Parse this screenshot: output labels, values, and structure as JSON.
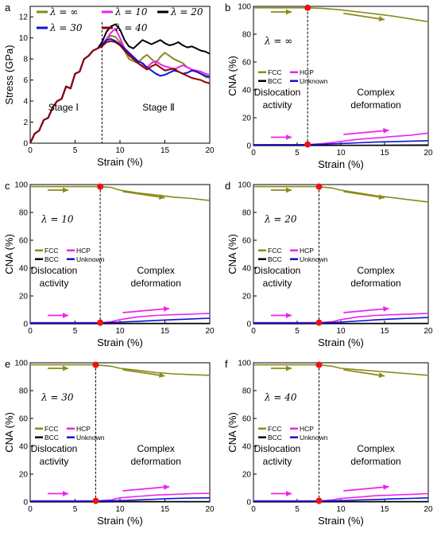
{
  "colors": {
    "olive": "#8a8a1a",
    "magenta": "#ee22ee",
    "black": "#000000",
    "blue": "#1010d8",
    "darkred": "#8b0000",
    "marker": "#ee1111"
  },
  "chart_data": [
    {
      "panel": "a",
      "type": "line",
      "xlabel": "Strain (%)",
      "ylabel": "Stress (GPa)",
      "xlim": [
        0,
        20
      ],
      "ylim": [
        0,
        13
      ],
      "xticks": [
        0,
        5,
        10,
        15,
        20
      ],
      "yticks": [
        0,
        2,
        4,
        6,
        8,
        10,
        12
      ],
      "stage_line_x": 8,
      "stage_labels": [
        "Stage Ⅰ",
        "Stage Ⅱ"
      ],
      "legend_position": "top",
      "series": [
        {
          "name": "λ = ∞",
          "color": "olive",
          "x": [
            0,
            0.5,
            1,
            1.5,
            2,
            2.5,
            3,
            3.5,
            4,
            4.5,
            5,
            5.5,
            6,
            6.5,
            7,
            7.5,
            8,
            8.5,
            9,
            9.5,
            10,
            10.5,
            11,
            11.5,
            12,
            12.5,
            13,
            13.5,
            14,
            14.5,
            15,
            15.5,
            16,
            16.5,
            17,
            17.5,
            18,
            18.5,
            19,
            19.5,
            20
          ],
          "y": [
            0,
            0.9,
            1.2,
            2.2,
            2.4,
            3.4,
            4.0,
            4.2,
            5.4,
            5.2,
            6.6,
            6.8,
            8.0,
            8.3,
            8.8,
            9.0,
            9.3,
            9.9,
            10.2,
            10.1,
            9.6,
            8.8,
            8.0,
            7.8,
            7.6,
            8.1,
            8.4,
            8.0,
            7.6,
            8.2,
            8.6,
            8.3,
            8.0,
            7.8,
            7.6,
            7.2,
            7.0,
            6.8,
            6.6,
            6.3,
            6.2
          ]
        },
        {
          "name": "λ = 10",
          "color": "magenta",
          "x": [
            0,
            0.5,
            1,
            1.5,
            2,
            2.5,
            3,
            3.5,
            4,
            4.5,
            5,
            5.5,
            6,
            6.5,
            7,
            7.5,
            8,
            8.5,
            9,
            9.5,
            10,
            10.5,
            11,
            11.5,
            12,
            12.5,
            13,
            13.5,
            14,
            14.5,
            15,
            15.5,
            16,
            16.5,
            17,
            17.5,
            18,
            18.5,
            19,
            19.5,
            20
          ],
          "y": [
            0,
            0.9,
            1.2,
            2.2,
            2.4,
            3.4,
            4.0,
            4.2,
            5.4,
            5.2,
            6.6,
            6.8,
            8.0,
            8.3,
            8.8,
            9.0,
            9.4,
            9.9,
            10.5,
            10.9,
            10.0,
            9.0,
            8.3,
            8.0,
            7.6,
            7.4,
            7.2,
            7.6,
            7.8,
            7.5,
            7.3,
            7.2,
            7.0,
            7.2,
            7.4,
            7.2,
            7.0,
            6.9,
            6.8,
            6.6,
            6.5
          ]
        },
        {
          "name": "λ = 20",
          "color": "black",
          "x": [
            0,
            0.5,
            1,
            1.5,
            2,
            2.5,
            3,
            3.5,
            4,
            4.5,
            5,
            5.5,
            6,
            6.5,
            7,
            7.5,
            8,
            8.5,
            9,
            9.5,
            10,
            10.5,
            11,
            11.5,
            12,
            12.5,
            13,
            13.5,
            14,
            14.5,
            15,
            15.5,
            16,
            16.5,
            17,
            17.5,
            18,
            18.5,
            19,
            19.5,
            20
          ],
          "y": [
            0,
            0.9,
            1.2,
            2.2,
            2.4,
            3.4,
            4.0,
            4.2,
            5.4,
            5.2,
            6.6,
            6.8,
            8.0,
            8.3,
            8.8,
            9.0,
            9.6,
            10.6,
            11.1,
            11.3,
            10.8,
            9.8,
            9.2,
            9.0,
            9.4,
            9.8,
            9.6,
            9.4,
            9.6,
            9.8,
            9.5,
            9.3,
            9.4,
            9.6,
            9.3,
            9.1,
            9.2,
            9.0,
            8.8,
            8.7,
            8.5
          ]
        },
        {
          "name": "λ = 30",
          "color": "blue",
          "x": [
            0,
            0.5,
            1,
            1.5,
            2,
            2.5,
            3,
            3.5,
            4,
            4.5,
            5,
            5.5,
            6,
            6.5,
            7,
            7.5,
            8,
            8.5,
            9,
            9.5,
            10,
            10.5,
            11,
            11.5,
            12,
            12.5,
            13,
            13.5,
            14,
            14.5,
            15,
            15.5,
            16,
            16.5,
            17,
            17.5,
            18,
            18.5,
            19,
            19.5,
            20
          ],
          "y": [
            0,
            0.9,
            1.2,
            2.2,
            2.4,
            3.4,
            4.0,
            4.2,
            5.4,
            5.2,
            6.6,
            6.8,
            8.0,
            8.3,
            8.8,
            9.0,
            9.3,
            9.8,
            9.9,
            9.7,
            9.4,
            9.0,
            8.6,
            8.2,
            7.8,
            7.6,
            7.2,
            6.9,
            6.6,
            6.4,
            6.5,
            6.7,
            6.9,
            6.8,
            6.6,
            6.7,
            6.9,
            6.8,
            6.6,
            6.4,
            6.3
          ]
        },
        {
          "name": "λ = 40",
          "color": "darkred",
          "x": [
            0,
            0.5,
            1,
            1.5,
            2,
            2.5,
            3,
            3.5,
            4,
            4.5,
            5,
            5.5,
            6,
            6.5,
            7,
            7.5,
            8,
            8.5,
            9,
            9.5,
            10,
            10.5,
            11,
            11.5,
            12,
            12.5,
            13,
            13.5,
            14,
            14.5,
            15,
            15.5,
            16,
            16.5,
            17,
            17.5,
            18,
            18.5,
            19,
            19.5,
            20
          ],
          "y": [
            0,
            0.9,
            1.2,
            2.2,
            2.4,
            3.4,
            4.0,
            4.2,
            5.4,
            5.2,
            6.6,
            6.8,
            8.0,
            8.3,
            8.8,
            9.0,
            9.2,
            9.6,
            9.7,
            9.6,
            9.3,
            8.8,
            8.4,
            8.0,
            7.6,
            7.3,
            7.0,
            7.3,
            7.5,
            7.2,
            6.9,
            7.0,
            7.1,
            6.8,
            6.6,
            6.4,
            6.2,
            6.1,
            6.0,
            5.8,
            5.7
          ]
        }
      ]
    },
    {
      "panel": "b",
      "type": "line",
      "lambda_label": "λ = ∞",
      "transition_x": 6.2,
      "xlabel": "Strain (%)",
      "ylabel": "CNA (%)",
      "xlim": [
        0,
        20
      ],
      "ylim": [
        0,
        100
      ],
      "xticks": [
        0,
        5,
        10,
        15,
        20
      ],
      "yticks": [
        0,
        20,
        40,
        60,
        80,
        100
      ],
      "legend": [
        "FCC",
        "HCP",
        "BCC",
        "Unknown"
      ],
      "region_labels": [
        "Dislocation activity",
        "Complex deformation"
      ],
      "series": [
        {
          "name": "FCC",
          "color": "olive",
          "x": [
            0,
            6.2,
            8,
            10,
            12,
            14,
            16,
            18,
            20
          ],
          "y": [
            99,
            99,
            98.5,
            97.5,
            96,
            94.5,
            93,
            91,
            89
          ]
        },
        {
          "name": "HCP",
          "color": "magenta",
          "x": [
            0,
            6.2,
            8,
            10,
            12,
            14,
            16,
            18,
            20
          ],
          "y": [
            0.5,
            0.7,
            1.5,
            3,
            4.5,
            5.5,
            6.5,
            7.5,
            9
          ]
        },
        {
          "name": "BCC",
          "color": "black",
          "x": [
            0,
            6.2,
            10,
            15,
            20
          ],
          "y": [
            0.1,
            0.1,
            0.2,
            0.3,
            0.4
          ]
        },
        {
          "name": "Unknown",
          "color": "blue",
          "x": [
            0,
            6.2,
            8,
            10,
            12,
            14,
            16,
            18,
            20
          ],
          "y": [
            0.6,
            0.6,
            1,
            1.5,
            2,
            2.5,
            2.8,
            3.2,
            3.5
          ]
        }
      ]
    },
    {
      "panel": "c",
      "type": "line",
      "lambda_label": "λ = 10",
      "transition_x": 7.8,
      "xlabel": "Strain (%)",
      "ylabel": "CNA (%)",
      "xlim": [
        0,
        20
      ],
      "ylim": [
        0,
        100
      ],
      "xticks": [
        0,
        5,
        10,
        15,
        20
      ],
      "yticks": [
        0,
        20,
        40,
        60,
        80,
        100
      ],
      "legend": [
        "FCC",
        "HCP",
        "BCC",
        "Unknown"
      ],
      "region_labels": [
        "Dislocation activity",
        "Complex deformation"
      ],
      "series": [
        {
          "name": "FCC",
          "color": "olive",
          "x": [
            0,
            7.8,
            9,
            10,
            12,
            14,
            16,
            18,
            20
          ],
          "y": [
            98.5,
            98.5,
            98,
            96,
            94,
            92.5,
            91,
            90,
            88.5
          ]
        },
        {
          "name": "HCP",
          "color": "magenta",
          "x": [
            0,
            7.8,
            9,
            10,
            12,
            14,
            16,
            18,
            20
          ],
          "y": [
            0.8,
            0.8,
            1.5,
            3,
            5,
            6,
            6.5,
            7,
            7.5
          ]
        },
        {
          "name": "BCC",
          "color": "black",
          "x": [
            0,
            7.8,
            12,
            16,
            20
          ],
          "y": [
            0.1,
            0.1,
            0.2,
            0.2,
            0.3
          ]
        },
        {
          "name": "Unknown",
          "color": "blue",
          "x": [
            0,
            7.8,
            10,
            12,
            14,
            16,
            18,
            20
          ],
          "y": [
            0.6,
            0.6,
            1.2,
            1.8,
            2.4,
            3,
            3.5,
            4
          ]
        }
      ]
    },
    {
      "panel": "d",
      "type": "line",
      "lambda_label": "λ = 20",
      "transition_x": 7.5,
      "xlabel": "Strain (%)",
      "ylabel": "CNA (%)",
      "xlim": [
        0,
        20
      ],
      "ylim": [
        0,
        100
      ],
      "xticks": [
        0,
        5,
        10,
        15,
        20
      ],
      "yticks": [
        0,
        20,
        40,
        60,
        80,
        100
      ],
      "legend": [
        "FCC",
        "HCP",
        "BCC",
        "Unknown"
      ],
      "region_labels": [
        "Dislocation activity",
        "Complex deformation"
      ],
      "series": [
        {
          "name": "FCC",
          "color": "olive",
          "x": [
            0,
            7.5,
            9,
            10,
            12,
            14,
            16,
            18,
            20
          ],
          "y": [
            98.5,
            98.5,
            97.5,
            96,
            94,
            92,
            90.5,
            89,
            87.5
          ]
        },
        {
          "name": "HCP",
          "color": "magenta",
          "x": [
            0,
            7.5,
            9,
            10,
            12,
            14,
            16,
            18,
            20
          ],
          "y": [
            0.8,
            0.8,
            1.5,
            3,
            5,
            6,
            6.5,
            7,
            7.5
          ]
        },
        {
          "name": "BCC",
          "color": "black",
          "x": [
            0,
            7.5,
            12,
            16,
            20
          ],
          "y": [
            0.1,
            0.1,
            0.2,
            0.2,
            0.3
          ]
        },
        {
          "name": "Unknown",
          "color": "blue",
          "x": [
            0,
            7.5,
            10,
            12,
            14,
            16,
            18,
            20
          ],
          "y": [
            0.6,
            0.6,
            1.2,
            2,
            2.8,
            3.5,
            4,
            4.5
          ]
        }
      ]
    },
    {
      "panel": "e",
      "type": "line",
      "lambda_label": "λ = 30",
      "transition_x": 7.3,
      "xlabel": "Strain (%)",
      "ylabel": "CNA (%)",
      "xlim": [
        0,
        20
      ],
      "ylim": [
        0,
        100
      ],
      "xticks": [
        0,
        5,
        10,
        15,
        20
      ],
      "yticks": [
        0,
        20,
        40,
        60,
        80,
        100
      ],
      "legend": [
        "FCC",
        "HCP",
        "BCC",
        "Unknown"
      ],
      "region_labels": [
        "Dislocation activity",
        "Complex deformation"
      ],
      "series": [
        {
          "name": "FCC",
          "color": "olive",
          "x": [
            0,
            7.3,
            9,
            10,
            12,
            14,
            16,
            18,
            20
          ],
          "y": [
            98.5,
            98.5,
            97.5,
            96,
            94.5,
            93,
            92,
            91.5,
            91
          ]
        },
        {
          "name": "HCP",
          "color": "magenta",
          "x": [
            0,
            7.3,
            9,
            10,
            12,
            14,
            16,
            18,
            20
          ],
          "y": [
            0.8,
            0.8,
            1.5,
            3,
            4,
            5,
            5.5,
            6,
            6.2
          ]
        },
        {
          "name": "BCC",
          "color": "black",
          "x": [
            0,
            7.3,
            12,
            16,
            20
          ],
          "y": [
            0.1,
            0.1,
            0.2,
            0.2,
            0.3
          ]
        },
        {
          "name": "Unknown",
          "color": "blue",
          "x": [
            0,
            7.3,
            10,
            12,
            14,
            16,
            18,
            20
          ],
          "y": [
            0.6,
            0.6,
            1,
            1.5,
            2,
            2.5,
            2.8,
            3
          ]
        }
      ]
    },
    {
      "panel": "f",
      "type": "line",
      "lambda_label": "λ = 40",
      "transition_x": 7.5,
      "xlabel": "Strain (%)",
      "ylabel": "CNA (%)",
      "xlim": [
        0,
        20
      ],
      "ylim": [
        0,
        100
      ],
      "xticks": [
        0,
        5,
        10,
        15,
        20
      ],
      "yticks": [
        0,
        20,
        40,
        60,
        80,
        100
      ],
      "legend": [
        "FCC",
        "HCP",
        "BCC",
        "Unknown"
      ],
      "region_labels": [
        "Dislocation activity",
        "Complex deformation"
      ],
      "series": [
        {
          "name": "FCC",
          "color": "olive",
          "x": [
            0,
            7.5,
            9,
            10,
            12,
            14,
            16,
            18,
            20
          ],
          "y": [
            98.5,
            98.5,
            97.5,
            96,
            95,
            94,
            93,
            92,
            91
          ]
        },
        {
          "name": "HCP",
          "color": "magenta",
          "x": [
            0,
            7.5,
            9,
            10,
            12,
            14,
            16,
            18,
            20
          ],
          "y": [
            0.8,
            0.8,
            1.5,
            2.5,
            3.5,
            4.5,
            5,
            5.5,
            6
          ]
        },
        {
          "name": "BCC",
          "color": "black",
          "x": [
            0,
            7.5,
            12,
            16,
            20
          ],
          "y": [
            0.1,
            0.1,
            0.2,
            0.2,
            0.3
          ]
        },
        {
          "name": "Unknown",
          "color": "blue",
          "x": [
            0,
            7.5,
            10,
            12,
            14,
            16,
            18,
            20
          ],
          "y": [
            0.6,
            0.6,
            1,
            1.4,
            1.8,
            2.2,
            2.6,
            3
          ]
        }
      ]
    }
  ]
}
